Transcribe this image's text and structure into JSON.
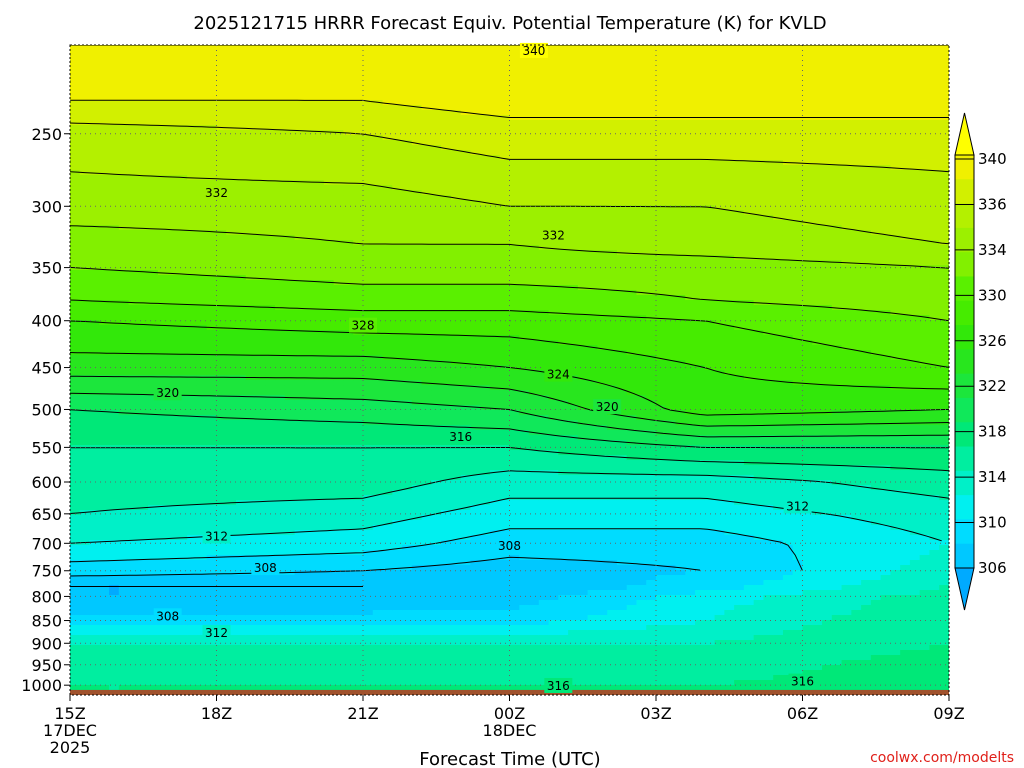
{
  "chart_data": {
    "type": "contour",
    "title": "2025121715 HRRR Forecast Equiv. Potential Temperature (K) for KVLD",
    "xlabel": "Forecast Time (UTC)",
    "ylabel": "",
    "credit": "coolwx.com/modelts",
    "x_ticks": [
      {
        "hours": 0,
        "label": "15Z",
        "sub1": "17DEC",
        "sub2": "2025"
      },
      {
        "hours": 3,
        "label": "18Z",
        "sub1": "",
        "sub2": ""
      },
      {
        "hours": 6,
        "label": "21Z",
        "sub1": "",
        "sub2": ""
      },
      {
        "hours": 9,
        "label": "00Z",
        "sub1": "18DEC",
        "sub2": ""
      },
      {
        "hours": 12,
        "label": "03Z",
        "sub1": "",
        "sub2": ""
      },
      {
        "hours": 15,
        "label": "06Z",
        "sub1": "",
        "sub2": ""
      },
      {
        "hours": 18,
        "label": "09Z",
        "sub1": "",
        "sub2": ""
      }
    ],
    "xlim_hours": [
      0,
      18
    ],
    "y_ticks_hPa": [
      250,
      300,
      350,
      400,
      450,
      500,
      550,
      600,
      650,
      700,
      750,
      800,
      850,
      900,
      950,
      1000
    ],
    "y_tick_labels": [
      "250",
      "300",
      "350",
      "400",
      "450",
      "500",
      "550",
      "600",
      "650",
      "700",
      "750",
      "800",
      "850",
      "900",
      "950",
      "1000"
    ],
    "ylim_hPa": [
      200,
      1025
    ],
    "grid": "dotted",
    "colorbar": {
      "labels": [
        "340",
        "336",
        "334",
        "330",
        "326",
        "322",
        "318",
        "314",
        "310",
        "306"
      ],
      "bands": [
        {
          "from": 306,
          "to": 308,
          "color": "#00c8ff"
        },
        {
          "from": 308,
          "to": 310,
          "color": "#00dcff"
        },
        {
          "from": 310,
          "to": 312,
          "color": "#00f0f0"
        },
        {
          "from": 312,
          "to": 314,
          "color": "#00f0c8"
        },
        {
          "from": 314,
          "to": 316,
          "color": "#00eea0"
        },
        {
          "from": 316,
          "to": 318,
          "color": "#00e878"
        },
        {
          "from": 318,
          "to": 320,
          "color": "#10e85a"
        },
        {
          "from": 320,
          "to": 322,
          "color": "#1ce63c"
        },
        {
          "from": 322,
          "to": 324,
          "color": "#28e61e"
        },
        {
          "from": 324,
          "to": 326,
          "color": "#32e80a"
        },
        {
          "from": 326,
          "to": 328,
          "color": "#46ec00"
        },
        {
          "from": 328,
          "to": 330,
          "color": "#5af000"
        },
        {
          "from": 330,
          "to": 332,
          "color": "#82f000"
        },
        {
          "from": 332,
          "to": 334,
          "color": "#9cf000"
        },
        {
          "from": 334,
          "to": 336,
          "color": "#b4f000"
        },
        {
          "from": 336,
          "to": 338,
          "color": "#d2f000"
        },
        {
          "from": 338,
          "to": 340,
          "color": "#f0f000"
        }
      ],
      "under_color": "#00aaff",
      "over_color": "#ffff00"
    },
    "contour_labels": [
      {
        "value": "340",
        "hours": 9.5,
        "hPa": 203
      },
      {
        "value": "332",
        "hours": 3.0,
        "hPa": 290
      },
      {
        "value": "332",
        "hours": 9.9,
        "hPa": 323
      },
      {
        "value": "328",
        "hours": 6.0,
        "hPa": 405
      },
      {
        "value": "324",
        "hours": 10.0,
        "hPa": 458
      },
      {
        "value": "320",
        "hours": 2.0,
        "hPa": 480
      },
      {
        "value": "320",
        "hours": 11.0,
        "hPa": 497
      },
      {
        "value": "316",
        "hours": 8.0,
        "hPa": 536
      },
      {
        "value": "312",
        "hours": 14.9,
        "hPa": 638
      },
      {
        "value": "312",
        "hours": 3.0,
        "hPa": 688
      },
      {
        "value": "308",
        "hours": 9.0,
        "hPa": 705
      },
      {
        "value": "308",
        "hours": 4.0,
        "hPa": 745
      },
      {
        "value": "308",
        "hours": 2.0,
        "hPa": 841
      },
      {
        "value": "312",
        "hours": 3.0,
        "hPa": 877
      },
      {
        "value": "316",
        "hours": 15.0,
        "hPa": 991
      },
      {
        "value": "316",
        "hours": 10.0,
        "hPa": 1002
      }
    ],
    "series_profiles": [
      {
        "hours": 0,
        "temps_K": {
          "200": 340,
          "230": 338,
          "250": 335,
          "300": 333,
          "330": 331,
          "350": 330,
          "380": 328,
          "400": 326,
          "450": 323,
          "500": 318,
          "550": 316,
          "600": 315,
          "650": 314,
          "700": 312,
          "750": 309,
          "780": 306,
          "800": 306,
          "850": 309,
          "900": 314,
          "950": 315,
          "1000": 316
        }
      },
      {
        "hours": 6,
        "temps_K": {
          "200": 340,
          "230": 338,
          "250": 336,
          "300": 333,
          "330": 332,
          "350": 331,
          "380": 329,
          "400": 327,
          "450": 323,
          "500": 319,
          "550": 316,
          "600": 315,
          "650": 313,
          "700": 311,
          "750": 308,
          "780": 306,
          "800": 306,
          "850": 309,
          "900": 314,
          "950": 315,
          "1000": 316
        }
      },
      {
        "hours": 9,
        "temps_K": {
          "200": 340,
          "230": 339,
          "250": 337,
          "300": 334,
          "330": 332,
          "350": 331,
          "380": 329,
          "400": 327,
          "450": 324,
          "500": 320,
          "550": 316,
          "600": 313,
          "650": 311,
          "700": 309,
          "750": 307,
          "780": 306,
          "800": 307,
          "850": 309,
          "900": 314,
          "950": 315,
          "1000": 316
        }
      },
      {
        "hours": 13,
        "temps_K": {
          "200": 340,
          "230": 339,
          "250": 337,
          "300": 334,
          "330": 333,
          "350": 331,
          "380": 330,
          "400": 328,
          "450": 326,
          "500": 325,
          "550": 318,
          "600": 313,
          "650": 311,
          "700": 309,
          "750": 308,
          "780": 309,
          "800": 311,
          "850": 312,
          "900": 314,
          "950": 315,
          "1000": 316
        }
      },
      {
        "hours": 18,
        "temps_K": {
          "200": 340,
          "230": 339,
          "250": 337,
          "300": 335,
          "330": 334,
          "350": 332,
          "380": 331,
          "400": 330,
          "450": 328,
          "500": 324,
          "550": 318,
          "600": 315,
          "650": 313,
          "700": 312,
          "750": 313,
          "780": 314,
          "800": 315,
          "850": 316,
          "900": 316,
          "950": 317,
          "1000": 317
        }
      }
    ],
    "ground_color": "#a0522d"
  }
}
